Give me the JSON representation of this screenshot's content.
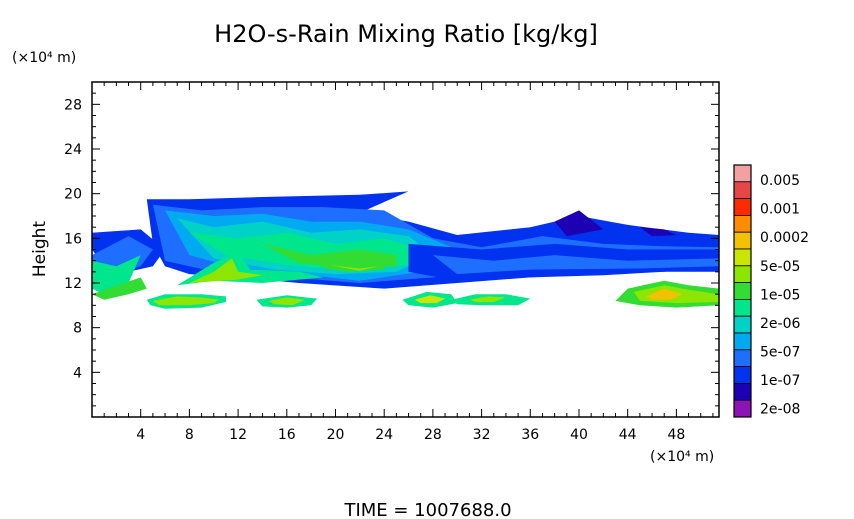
{
  "chart_data": {
    "type": "heatmap",
    "title": "H2O-s-Rain Mixing Ratio [kg/kg]",
    "ylabel": "Height",
    "y_unit": "(×10⁴ m)",
    "x_unit": "(×10⁴ m)",
    "xlim": [
      0,
      51.5
    ],
    "ylim": [
      0,
      30
    ],
    "x_ticks": [
      "4",
      "8",
      "12",
      "16",
      "20",
      "24",
      "28",
      "32",
      "36",
      "40",
      "44",
      "48"
    ],
    "y_ticks": [
      "4",
      "8",
      "12",
      "16",
      "20",
      "24",
      "28"
    ],
    "footer": "TIME = 1007688.0",
    "colorbar": {
      "labels": [
        "0.005",
        "0.001",
        "0.0002",
        "5e-05",
        "1e-05",
        "2e-06",
        "5e-07",
        "1e-07",
        "2e-08"
      ],
      "colors": [
        "#f2a0a0",
        "#e64646",
        "#ff2a00",
        "#ff8c00",
        "#f2c200",
        "#c8e600",
        "#8ce600",
        "#32dc32",
        "#00e68c",
        "#00d2c8",
        "#00aaf0",
        "#1e6eff",
        "#0032f0",
        "#1e00b4",
        "#8c14b4"
      ]
    },
    "regions": [
      {
        "level": 2,
        "pts": [
          [
            0,
            16.5
          ],
          [
            4,
            16.8
          ],
          [
            6,
            15
          ],
          [
            5,
            13.5
          ],
          [
            3,
            13
          ],
          [
            1,
            13.5
          ],
          [
            0,
            15
          ]
        ]
      },
      {
        "level": 3,
        "pts": [
          [
            0,
            14.5
          ],
          [
            3,
            16.2
          ],
          [
            5,
            15
          ],
          [
            4,
            13.5
          ],
          [
            2,
            13
          ],
          [
            0,
            13.5
          ]
        ]
      },
      {
        "level": 6,
        "pts": [
          [
            0,
            14
          ],
          [
            2,
            13.5
          ],
          [
            4,
            14.5
          ],
          [
            3,
            12
          ],
          [
            1,
            11
          ],
          [
            0,
            11.5
          ]
        ]
      },
      {
        "level": 7,
        "pts": [
          [
            4,
            12.5
          ],
          [
            4.5,
            11.5
          ],
          [
            3,
            11
          ],
          [
            1,
            10.5
          ],
          [
            0,
            11
          ]
        ]
      },
      {
        "level": 2,
        "pts": [
          [
            4.5,
            19.5
          ],
          [
            8,
            19.5
          ],
          [
            14,
            19.7
          ],
          [
            18,
            19.8
          ],
          [
            22,
            19.9
          ],
          [
            26,
            20.2
          ],
          [
            22,
            18.3
          ],
          [
            26,
            17.5
          ],
          [
            30,
            16.3
          ],
          [
            36,
            17
          ],
          [
            40,
            18
          ],
          [
            44,
            17.2
          ],
          [
            49,
            16.5
          ],
          [
            51.5,
            16.3
          ],
          [
            51.5,
            13.5
          ],
          [
            47,
            13
          ],
          [
            42,
            12.7
          ],
          [
            36,
            12.5
          ],
          [
            30,
            12
          ],
          [
            24,
            11.5
          ],
          [
            17,
            12
          ],
          [
            12,
            12.5
          ],
          [
            8,
            12.8
          ],
          [
            6,
            13.5
          ],
          [
            5,
            15.5
          ]
        ]
      },
      {
        "level": 3,
        "pts": [
          [
            5,
            19
          ],
          [
            9,
            18.5
          ],
          [
            14,
            18.8
          ],
          [
            19,
            18.8
          ],
          [
            24,
            18.5
          ],
          [
            28,
            16
          ],
          [
            32,
            15.2
          ],
          [
            37,
            16.2
          ],
          [
            42,
            15.5
          ],
          [
            47,
            15.3
          ],
          [
            51.5,
            15.2
          ],
          [
            51.5,
            14
          ],
          [
            46,
            13.5
          ],
          [
            40,
            13.5
          ],
          [
            34,
            13
          ],
          [
            28,
            12.5
          ],
          [
            22,
            12
          ],
          [
            16,
            12.5
          ],
          [
            10,
            13
          ],
          [
            6,
            14
          ]
        ]
      },
      {
        "level": 4,
        "pts": [
          [
            6,
            18.5
          ],
          [
            10,
            18
          ],
          [
            14,
            18.2
          ],
          [
            18,
            17.5
          ],
          [
            22,
            17.5
          ],
          [
            26,
            16.8
          ],
          [
            30,
            15
          ],
          [
            27,
            13
          ],
          [
            22,
            12.2
          ],
          [
            17,
            12.8
          ],
          [
            12,
            13.3
          ],
          [
            8,
            14.5
          ]
        ]
      },
      {
        "level": 5,
        "pts": [
          [
            7,
            17.8
          ],
          [
            10,
            17
          ],
          [
            14,
            17.5
          ],
          [
            18,
            16.5
          ],
          [
            22,
            16.8
          ],
          [
            26,
            16.2
          ],
          [
            28,
            14.5
          ],
          [
            25,
            13
          ],
          [
            20,
            12.8
          ],
          [
            15,
            13.2
          ],
          [
            10,
            14.2
          ]
        ]
      },
      {
        "level": 6,
        "pts": [
          [
            8,
            16.5
          ],
          [
            12,
            16
          ],
          [
            16,
            16.5
          ],
          [
            20,
            15.5
          ],
          [
            24,
            16
          ],
          [
            27,
            15
          ],
          [
            26,
            13.6
          ],
          [
            21,
            13.2
          ],
          [
            16,
            13.6
          ],
          [
            11,
            14.5
          ]
        ]
      },
      {
        "level": 7,
        "pts": [
          [
            14,
            15.5
          ],
          [
            18,
            14.5
          ],
          [
            22,
            15
          ],
          [
            25,
            14.5
          ],
          [
            25,
            13.5
          ],
          [
            21,
            13.3
          ],
          [
            17,
            13.8
          ]
        ]
      },
      {
        "level": 6,
        "pts": [
          [
            7,
            11.8
          ],
          [
            10,
            13.8
          ],
          [
            12,
            14.8
          ],
          [
            13,
            13.2
          ],
          [
            17,
            13
          ],
          [
            19,
            12.5
          ],
          [
            14,
            12
          ],
          [
            10,
            12.2
          ]
        ]
      },
      {
        "level": 8,
        "pts": [
          [
            8,
            12
          ],
          [
            10,
            13
          ],
          [
            11.5,
            14.2
          ],
          [
            12,
            13
          ],
          [
            14,
            12.7
          ],
          [
            12,
            12.3
          ]
        ]
      },
      {
        "level": 7,
        "pts": [
          [
            19,
            14
          ],
          [
            22,
            13.6
          ],
          [
            24,
            13.8
          ],
          [
            24,
            13.2
          ],
          [
            21,
            13
          ],
          [
            19,
            13.3
          ]
        ]
      },
      {
        "level": 8,
        "pts": [
          [
            19.5,
            13.6
          ],
          [
            22,
            13.3
          ],
          [
            23.5,
            13.5
          ],
          [
            22,
            13.1
          ]
        ]
      },
      {
        "level": 2,
        "pts": [
          [
            26,
            15.5
          ],
          [
            32,
            15
          ],
          [
            38,
            15.5
          ],
          [
            44,
            15
          ],
          [
            51.5,
            15
          ],
          [
            51.5,
            13
          ],
          [
            44,
            13
          ],
          [
            36,
            12.5
          ],
          [
            30,
            12.2
          ],
          [
            26,
            13
          ]
        ]
      },
      {
        "level": 3,
        "pts": [
          [
            28,
            14.5
          ],
          [
            33,
            14
          ],
          [
            38,
            14.5
          ],
          [
            44,
            14
          ],
          [
            51.5,
            14.2
          ],
          [
            51.5,
            13.5
          ],
          [
            45,
            13.3
          ],
          [
            36,
            13.2
          ],
          [
            30,
            12.8
          ]
        ]
      },
      {
        "level": 1,
        "pts": [
          [
            38,
            17.5
          ],
          [
            40,
            18.5
          ],
          [
            42,
            16.8
          ],
          [
            39,
            16.2
          ]
        ]
      },
      {
        "level": 1,
        "pts": [
          [
            45,
            17
          ],
          [
            47,
            16.8
          ],
          [
            48,
            16.3
          ],
          [
            46,
            16.2
          ]
        ]
      },
      {
        "level": 6,
        "pts": [
          [
            4.5,
            10.5
          ],
          [
            6,
            11
          ],
          [
            9,
            11
          ],
          [
            11,
            10.8
          ],
          [
            11,
            10.3
          ],
          [
            9,
            9.8
          ],
          [
            6,
            9.7
          ],
          [
            4.8,
            10
          ]
        ]
      },
      {
        "level": 8,
        "pts": [
          [
            5,
            10.4
          ],
          [
            7,
            10.8
          ],
          [
            9,
            10.7
          ],
          [
            10.5,
            10.5
          ],
          [
            10,
            10.2
          ],
          [
            8,
            10
          ],
          [
            5.5,
            10
          ]
        ]
      },
      {
        "level": 6,
        "pts": [
          [
            13.5,
            10.5
          ],
          [
            16,
            10.9
          ],
          [
            18.5,
            10.6
          ],
          [
            18,
            10
          ],
          [
            16,
            9.8
          ],
          [
            14,
            9.9
          ]
        ]
      },
      {
        "level": 8,
        "pts": [
          [
            14.5,
            10.4
          ],
          [
            16,
            10.7
          ],
          [
            17.5,
            10.5
          ],
          [
            16.5,
            10
          ],
          [
            15,
            10.1
          ]
        ]
      },
      {
        "level": 6,
        "pts": [
          [
            25.5,
            10.5
          ],
          [
            27.5,
            11.2
          ],
          [
            29.5,
            11
          ],
          [
            30,
            10.2
          ],
          [
            28,
            9.8
          ],
          [
            26,
            10
          ]
        ]
      },
      {
        "level": 9,
        "pts": [
          [
            26.5,
            10.5
          ],
          [
            27.8,
            10.9
          ],
          [
            29,
            10.6
          ],
          [
            28.3,
            10.2
          ],
          [
            27,
            10.2
          ]
        ]
      },
      {
        "level": 6,
        "pts": [
          [
            29.5,
            10.5
          ],
          [
            31.5,
            11
          ],
          [
            34,
            11
          ],
          [
            36,
            10.6
          ],
          [
            35,
            10
          ],
          [
            32,
            10
          ],
          [
            30,
            10.1
          ]
        ]
      },
      {
        "level": 8,
        "pts": [
          [
            31,
            10.5
          ],
          [
            32.5,
            10.8
          ],
          [
            34,
            10.7
          ],
          [
            33,
            10.3
          ],
          [
            31.5,
            10.3
          ]
        ]
      },
      {
        "level": 7,
        "pts": [
          [
            44,
            11.5
          ],
          [
            47,
            12.2
          ],
          [
            49,
            11.8
          ],
          [
            51.5,
            11.5
          ],
          [
            51.5,
            10
          ],
          [
            48,
            9.8
          ],
          [
            45,
            10
          ],
          [
            43,
            10.4
          ]
        ]
      },
      {
        "level": 8,
        "pts": [
          [
            44.5,
            11.2
          ],
          [
            47,
            11.8
          ],
          [
            49,
            11.4
          ],
          [
            51.5,
            11
          ],
          [
            51.5,
            10.3
          ],
          [
            48,
            10.2
          ],
          [
            45,
            10.4
          ]
        ]
      },
      {
        "level": 10,
        "pts": [
          [
            45.5,
            10.8
          ],
          [
            47,
            11.5
          ],
          [
            48.5,
            11
          ],
          [
            47.5,
            10.5
          ],
          [
            46,
            10.5
          ]
        ]
      }
    ]
  }
}
